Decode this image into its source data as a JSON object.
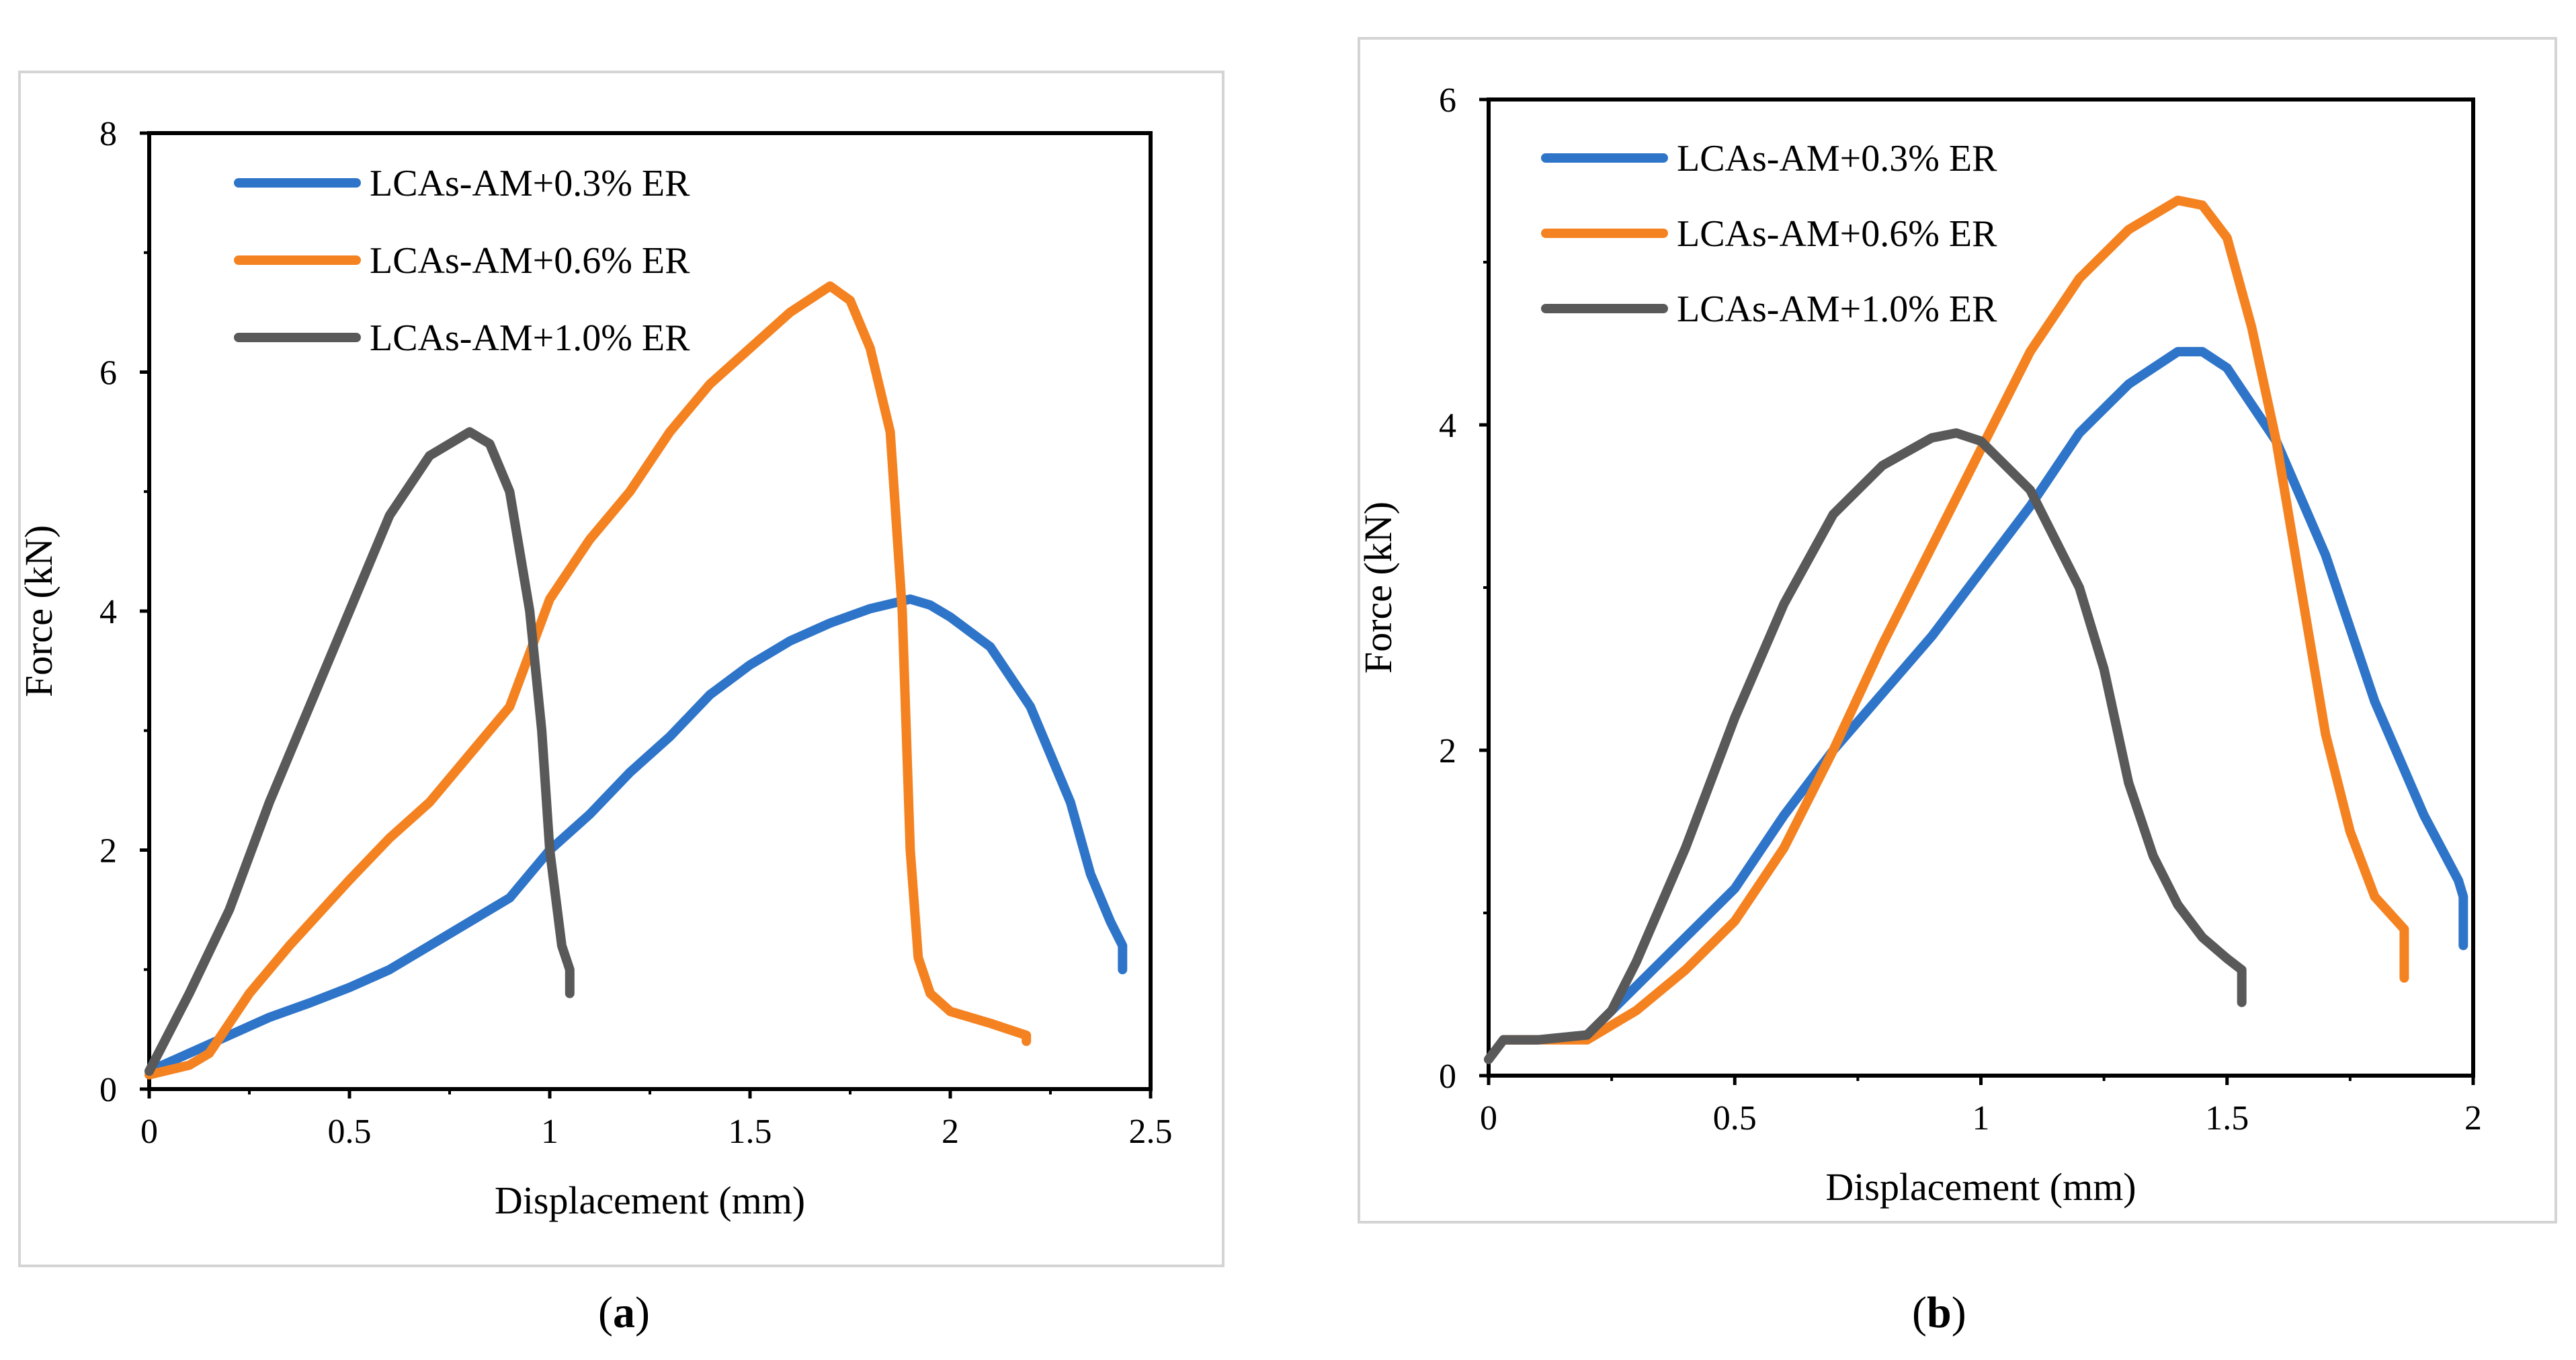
{
  "captions": {
    "a": "a",
    "b": "b"
  },
  "chart_data": [
    {
      "type": "line",
      "panel": "a",
      "title": "",
      "xlabel": "Displacement (mm)",
      "ylabel": "Force (kN)",
      "xlim": [
        0,
        2.5
      ],
      "ylim": [
        0,
        8
      ],
      "xticks": [
        0,
        0.5,
        1,
        1.5,
        2,
        2.5
      ],
      "xtick_labels": [
        "0",
        "0.5",
        "1",
        "1.5",
        "2",
        "2.5"
      ],
      "yticks": [
        0,
        2,
        4,
        6,
        8
      ],
      "ytick_labels": [
        "0",
        "2",
        "4",
        "6",
        "8"
      ],
      "grid": false,
      "legend_position": "top-left",
      "series": [
        {
          "name": "LCAs-AM+0.3% ER",
          "color": "#2e75c9",
          "points": [
            [
              0,
              0.15
            ],
            [
              0.1,
              0.3
            ],
            [
              0.2,
              0.45
            ],
            [
              0.3,
              0.6
            ],
            [
              0.4,
              0.72
            ],
            [
              0.5,
              0.85
            ],
            [
              0.6,
              1.0
            ],
            [
              0.7,
              1.2
            ],
            [
              0.8,
              1.4
            ],
            [
              0.9,
              1.6
            ],
            [
              1.0,
              2.0
            ],
            [
              1.1,
              2.3
            ],
            [
              1.2,
              2.65
            ],
            [
              1.3,
              2.95
            ],
            [
              1.4,
              3.3
            ],
            [
              1.5,
              3.55
            ],
            [
              1.6,
              3.75
            ],
            [
              1.7,
              3.9
            ],
            [
              1.8,
              4.02
            ],
            [
              1.9,
              4.1
            ],
            [
              1.95,
              4.05
            ],
            [
              2.0,
              3.95
            ],
            [
              2.1,
              3.7
            ],
            [
              2.2,
              3.2
            ],
            [
              2.3,
              2.4
            ],
            [
              2.35,
              1.8
            ],
            [
              2.4,
              1.4
            ],
            [
              2.43,
              1.2
            ],
            [
              2.43,
              1.0
            ]
          ]
        },
        {
          "name": "LCAs-AM+0.6% ER",
          "color": "#f58220",
          "points": [
            [
              0,
              0.12
            ],
            [
              0.1,
              0.2
            ],
            [
              0.15,
              0.3
            ],
            [
              0.25,
              0.8
            ],
            [
              0.35,
              1.2
            ],
            [
              0.5,
              1.75
            ],
            [
              0.6,
              2.1
            ],
            [
              0.7,
              2.4
            ],
            [
              0.8,
              2.8
            ],
            [
              0.9,
              3.2
            ],
            [
              1.0,
              4.1
            ],
            [
              1.1,
              4.6
            ],
            [
              1.2,
              5.0
            ],
            [
              1.3,
              5.5
            ],
            [
              1.4,
              5.9
            ],
            [
              1.5,
              6.2
            ],
            [
              1.6,
              6.5
            ],
            [
              1.7,
              6.72
            ],
            [
              1.75,
              6.6
            ],
            [
              1.8,
              6.2
            ],
            [
              1.85,
              5.5
            ],
            [
              1.88,
              4.0
            ],
            [
              1.9,
              2.0
            ],
            [
              1.92,
              1.1
            ],
            [
              1.95,
              0.8
            ],
            [
              2.0,
              0.65
            ],
            [
              2.1,
              0.55
            ],
            [
              2.19,
              0.45
            ],
            [
              2.19,
              0.4
            ]
          ]
        },
        {
          "name": "LCAs-AM+1.0% ER",
          "color": "#595959",
          "points": [
            [
              0,
              0.15
            ],
            [
              0.1,
              0.8
            ],
            [
              0.2,
              1.5
            ],
            [
              0.3,
              2.4
            ],
            [
              0.4,
              3.2
            ],
            [
              0.5,
              4.0
            ],
            [
              0.6,
              4.8
            ],
            [
              0.7,
              5.3
            ],
            [
              0.8,
              5.5
            ],
            [
              0.85,
              5.4
            ],
            [
              0.9,
              5.0
            ],
            [
              0.95,
              4.0
            ],
            [
              0.98,
              3.0
            ],
            [
              1.0,
              2.0
            ],
            [
              1.03,
              1.2
            ],
            [
              1.05,
              1.0
            ],
            [
              1.05,
              0.8
            ]
          ]
        }
      ]
    },
    {
      "type": "line",
      "panel": "b",
      "title": "",
      "xlabel": "Displacement (mm)",
      "ylabel": "Force (kN)",
      "xlim": [
        0,
        2
      ],
      "ylim": [
        0,
        6
      ],
      "xticks": [
        0,
        0.5,
        1,
        1.5,
        2
      ],
      "xtick_labels": [
        "0",
        "0.5",
        "1",
        "1.5",
        "2"
      ],
      "yticks": [
        0,
        2,
        4,
        6
      ],
      "ytick_labels": [
        "0",
        "2",
        "4",
        "6"
      ],
      "grid": false,
      "legend_position": "top-left",
      "series": [
        {
          "name": "LCAs-AM+0.3% ER",
          "color": "#2e75c9",
          "points": [
            [
              0,
              0.1
            ],
            [
              0.03,
              0.22
            ],
            [
              0.1,
              0.22
            ],
            [
              0.2,
              0.25
            ],
            [
              0.3,
              0.55
            ],
            [
              0.4,
              0.85
            ],
            [
              0.5,
              1.15
            ],
            [
              0.6,
              1.6
            ],
            [
              0.7,
              2.0
            ],
            [
              0.8,
              2.35
            ],
            [
              0.9,
              2.7
            ],
            [
              1.0,
              3.1
            ],
            [
              1.1,
              3.5
            ],
            [
              1.2,
              3.95
            ],
            [
              1.3,
              4.25
            ],
            [
              1.4,
              4.45
            ],
            [
              1.45,
              4.45
            ],
            [
              1.5,
              4.35
            ],
            [
              1.6,
              3.9
            ],
            [
              1.7,
              3.2
            ],
            [
              1.8,
              2.3
            ],
            [
              1.9,
              1.6
            ],
            [
              1.97,
              1.2
            ],
            [
              1.98,
              1.1
            ],
            [
              1.98,
              0.8
            ]
          ]
        },
        {
          "name": "LCAs-AM+0.6% ER",
          "color": "#f58220",
          "points": [
            [
              0,
              0.1
            ],
            [
              0.03,
              0.22
            ],
            [
              0.1,
              0.22
            ],
            [
              0.2,
              0.22
            ],
            [
              0.3,
              0.4
            ],
            [
              0.4,
              0.65
            ],
            [
              0.5,
              0.95
            ],
            [
              0.6,
              1.4
            ],
            [
              0.7,
              2.0
            ],
            [
              0.8,
              2.65
            ],
            [
              0.9,
              3.25
            ],
            [
              1.0,
              3.85
            ],
            [
              1.1,
              4.45
            ],
            [
              1.2,
              4.9
            ],
            [
              1.3,
              5.2
            ],
            [
              1.4,
              5.38
            ],
            [
              1.45,
              5.35
            ],
            [
              1.5,
              5.15
            ],
            [
              1.55,
              4.6
            ],
            [
              1.6,
              3.9
            ],
            [
              1.65,
              3.0
            ],
            [
              1.7,
              2.1
            ],
            [
              1.75,
              1.5
            ],
            [
              1.8,
              1.1
            ],
            [
              1.86,
              0.9
            ],
            [
              1.86,
              0.6
            ]
          ]
        },
        {
          "name": "LCAs-AM+1.0% ER",
          "color": "#595959",
          "points": [
            [
              0,
              0.1
            ],
            [
              0.03,
              0.22
            ],
            [
              0.1,
              0.22
            ],
            [
              0.2,
              0.25
            ],
            [
              0.25,
              0.4
            ],
            [
              0.3,
              0.7
            ],
            [
              0.4,
              1.4
            ],
            [
              0.5,
              2.2
            ],
            [
              0.6,
              2.9
            ],
            [
              0.7,
              3.45
            ],
            [
              0.8,
              3.75
            ],
            [
              0.9,
              3.92
            ],
            [
              0.95,
              3.95
            ],
            [
              1.0,
              3.9
            ],
            [
              1.1,
              3.6
            ],
            [
              1.2,
              3.0
            ],
            [
              1.25,
              2.5
            ],
            [
              1.3,
              1.8
            ],
            [
              1.35,
              1.35
            ],
            [
              1.4,
              1.05
            ],
            [
              1.45,
              0.85
            ],
            [
              1.5,
              0.72
            ],
            [
              1.53,
              0.65
            ],
            [
              1.53,
              0.45
            ]
          ]
        }
      ]
    }
  ]
}
